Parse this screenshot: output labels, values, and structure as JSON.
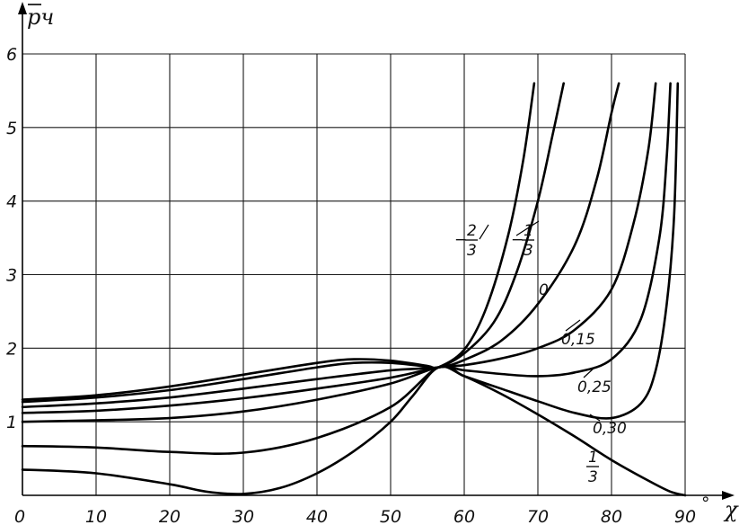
{
  "chart_data": {
    "type": "line",
    "xlabel": "χ",
    "ylabel": "p̄ч",
    "x_unit": "°",
    "xlim": [
      0,
      90
    ],
    "ylim": [
      0,
      6
    ],
    "x_ticks": [
      "0",
      "10",
      "20",
      "30",
      "40",
      "50",
      "60",
      "70",
      "80",
      "90"
    ],
    "y_ticks": [
      "1",
      "2",
      "3",
      "4",
      "5",
      "6"
    ],
    "grid": true,
    "series": [
      {
        "name": "-2/3",
        "label_parts": [
          "−",
          "2",
          "3"
        ],
        "points": [
          [
            0,
            1.3
          ],
          [
            10,
            1.36
          ],
          [
            20,
            1.48
          ],
          [
            30,
            1.64
          ],
          [
            40,
            1.8
          ],
          [
            45,
            1.85
          ],
          [
            50,
            1.83
          ],
          [
            55,
            1.76
          ],
          [
            56.5,
            1.74
          ],
          [
            60,
            1.98
          ],
          [
            63,
            2.55
          ],
          [
            66,
            3.55
          ],
          [
            68,
            4.55
          ],
          [
            69.5,
            5.6
          ]
        ]
      },
      {
        "name": "-1/3",
        "label_parts": [
          "−",
          "1",
          "3"
        ],
        "points": [
          [
            0,
            1.27
          ],
          [
            10,
            1.33
          ],
          [
            20,
            1.43
          ],
          [
            30,
            1.58
          ],
          [
            40,
            1.74
          ],
          [
            45,
            1.8
          ],
          [
            50,
            1.8
          ],
          [
            55,
            1.75
          ],
          [
            56.5,
            1.74
          ],
          [
            60,
            1.93
          ],
          [
            64,
            2.35
          ],
          [
            67,
            3.0
          ],
          [
            70,
            4.0
          ],
          [
            72,
            4.9
          ],
          [
            73.5,
            5.6
          ]
        ]
      },
      {
        "name": "0",
        "points": [
          [
            0,
            1.2
          ],
          [
            10,
            1.25
          ],
          [
            20,
            1.33
          ],
          [
            30,
            1.45
          ],
          [
            40,
            1.58
          ],
          [
            50,
            1.7
          ],
          [
            56.5,
            1.74
          ],
          [
            60,
            1.84
          ],
          [
            65,
            2.1
          ],
          [
            70,
            2.6
          ],
          [
            75,
            3.4
          ],
          [
            78,
            4.3
          ],
          [
            80,
            5.2
          ],
          [
            81,
            5.6
          ]
        ]
      },
      {
        "name": "0,15",
        "points": [
          [
            0,
            1.12
          ],
          [
            10,
            1.15
          ],
          [
            20,
            1.22
          ],
          [
            30,
            1.32
          ],
          [
            40,
            1.45
          ],
          [
            50,
            1.6
          ],
          [
            56.5,
            1.74
          ],
          [
            60,
            1.77
          ],
          [
            65,
            1.86
          ],
          [
            70,
            2.0
          ],
          [
            75,
            2.25
          ],
          [
            80,
            2.8
          ],
          [
            83,
            3.7
          ],
          [
            85,
            4.7
          ],
          [
            86,
            5.6
          ]
        ]
      },
      {
        "name": "0,25",
        "points": [
          [
            0,
            1.0
          ],
          [
            10,
            1.02
          ],
          [
            20,
            1.05
          ],
          [
            30,
            1.14
          ],
          [
            40,
            1.3
          ],
          [
            50,
            1.52
          ],
          [
            56.5,
            1.74
          ],
          [
            60,
            1.7
          ],
          [
            65,
            1.65
          ],
          [
            70,
            1.62
          ],
          [
            75,
            1.67
          ],
          [
            80,
            1.85
          ],
          [
            84,
            2.4
          ],
          [
            86.5,
            3.5
          ],
          [
            87.5,
            4.6
          ],
          [
            88,
            5.6
          ]
        ]
      },
      {
        "name": "0,30",
        "points": [
          [
            0,
            0.67
          ],
          [
            10,
            0.65
          ],
          [
            20,
            0.59
          ],
          [
            30,
            0.58
          ],
          [
            40,
            0.78
          ],
          [
            50,
            1.2
          ],
          [
            56.5,
            1.74
          ],
          [
            60,
            1.62
          ],
          [
            65,
            1.45
          ],
          [
            70,
            1.28
          ],
          [
            75,
            1.12
          ],
          [
            80,
            1.05
          ],
          [
            84,
            1.25
          ],
          [
            86,
            1.7
          ],
          [
            87.5,
            2.6
          ],
          [
            88.5,
            3.8
          ],
          [
            89,
            5.6
          ]
        ]
      },
      {
        "name": "1/3",
        "label_parts": [
          "1",
          "3"
        ],
        "points": [
          [
            0,
            0.35
          ],
          [
            10,
            0.3
          ],
          [
            20,
            0.15
          ],
          [
            25,
            0.05
          ],
          [
            30,
            0.02
          ],
          [
            35,
            0.1
          ],
          [
            40,
            0.3
          ],
          [
            45,
            0.6
          ],
          [
            50,
            1.0
          ],
          [
            53,
            1.35
          ],
          [
            56.5,
            1.74
          ],
          [
            60,
            1.62
          ],
          [
            65,
            1.38
          ],
          [
            70,
            1.1
          ],
          [
            75,
            0.8
          ],
          [
            80,
            0.48
          ],
          [
            85,
            0.2
          ],
          [
            88,
            0.05
          ],
          [
            90,
            0.0
          ]
        ]
      }
    ]
  }
}
